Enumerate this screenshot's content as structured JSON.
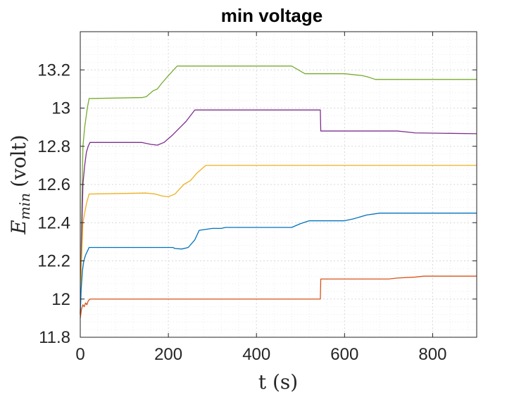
{
  "chart_data": {
    "type": "line",
    "title": "min voltage",
    "xlabel": "t (s)",
    "ylabel": "E_min (volt)",
    "ylabel_main": "E",
    "ylabel_sub": "min",
    "ylabel_unit": "(volt)",
    "xlim": [
      0,
      900
    ],
    "ylim": [
      11.8,
      13.4
    ],
    "xticks": [
      0,
      200,
      400,
      600,
      800
    ],
    "yticks": [
      11.8,
      12,
      12.2,
      12.4,
      12.6,
      12.8,
      13,
      13.2
    ],
    "ytick_labels": [
      "11.8",
      "12",
      "12.2",
      "12.4",
      "12.6",
      "12.8",
      "13",
      "13.2"
    ],
    "grid": true,
    "minor_grid": true,
    "series": [
      {
        "color": "#77ac30",
        "points": [
          [
            0,
            11.93
          ],
          [
            3,
            12.4
          ],
          [
            6,
            12.8
          ],
          [
            10,
            12.9
          ],
          [
            13,
            12.95
          ],
          [
            16,
            13.0
          ],
          [
            20,
            13.05
          ],
          [
            140,
            13.055
          ],
          [
            150,
            13.06
          ],
          [
            165,
            13.09
          ],
          [
            175,
            13.1
          ],
          [
            185,
            13.13
          ],
          [
            200,
            13.17
          ],
          [
            220,
            13.22
          ],
          [
            480,
            13.22
          ],
          [
            510,
            13.18
          ],
          [
            600,
            13.18
          ],
          [
            640,
            13.17
          ],
          [
            650,
            13.165
          ],
          [
            670,
            13.15
          ],
          [
            900,
            13.15
          ]
        ]
      },
      {
        "color": "#7e2f8e",
        "points": [
          [
            0,
            11.92
          ],
          [
            3,
            12.3
          ],
          [
            6,
            12.6
          ],
          [
            10,
            12.7
          ],
          [
            14,
            12.77
          ],
          [
            18,
            12.8
          ],
          [
            22,
            12.82
          ],
          [
            140,
            12.82
          ],
          [
            160,
            12.81
          ],
          [
            175,
            12.806
          ],
          [
            190,
            12.82
          ],
          [
            210,
            12.86
          ],
          [
            240,
            12.93
          ],
          [
            260,
            12.99
          ],
          [
            545,
            12.99
          ],
          [
            546,
            12.88
          ],
          [
            720,
            12.88
          ],
          [
            740,
            12.875
          ],
          [
            760,
            12.87
          ],
          [
            900,
            12.866
          ]
        ]
      },
      {
        "color": "#edb120",
        "points": [
          [
            0,
            11.92
          ],
          [
            3,
            12.2
          ],
          [
            6,
            12.4
          ],
          [
            10,
            12.45
          ],
          [
            14,
            12.5
          ],
          [
            20,
            12.55
          ],
          [
            150,
            12.555
          ],
          [
            170,
            12.55
          ],
          [
            185,
            12.54
          ],
          [
            200,
            12.536
          ],
          [
            215,
            12.55
          ],
          [
            235,
            12.6
          ],
          [
            250,
            12.62
          ],
          [
            265,
            12.66
          ],
          [
            285,
            12.7
          ],
          [
            900,
            12.7
          ]
        ]
      },
      {
        "color": "#0072bd",
        "points": [
          [
            0,
            11.92
          ],
          [
            2,
            12.05
          ],
          [
            5,
            12.15
          ],
          [
            8,
            12.2
          ],
          [
            12,
            12.23
          ],
          [
            16,
            12.25
          ],
          [
            20,
            12.27
          ],
          [
            210,
            12.27
          ],
          [
            215,
            12.265
          ],
          [
            230,
            12.262
          ],
          [
            245,
            12.27
          ],
          [
            260,
            12.31
          ],
          [
            270,
            12.36
          ],
          [
            300,
            12.37
          ],
          [
            320,
            12.37
          ],
          [
            330,
            12.375
          ],
          [
            480,
            12.375
          ],
          [
            500,
            12.395
          ],
          [
            520,
            12.41
          ],
          [
            600,
            12.41
          ],
          [
            620,
            12.42
          ],
          [
            650,
            12.44
          ],
          [
            680,
            12.45
          ],
          [
            900,
            12.45
          ]
        ]
      },
      {
        "color": "#d95319",
        "points": [
          [
            0,
            11.9
          ],
          [
            3,
            11.95
          ],
          [
            6,
            11.97
          ],
          [
            9,
            11.96
          ],
          [
            12,
            11.98
          ],
          [
            15,
            11.97
          ],
          [
            18,
            11.99
          ],
          [
            22,
            12.0
          ],
          [
            25,
            12.0
          ],
          [
            545,
            12.0
          ],
          [
            546,
            12.105
          ],
          [
            700,
            12.105
          ],
          [
            720,
            12.11
          ],
          [
            760,
            12.115
          ],
          [
            780,
            12.12
          ],
          [
            900,
            12.12
          ]
        ]
      }
    ]
  }
}
